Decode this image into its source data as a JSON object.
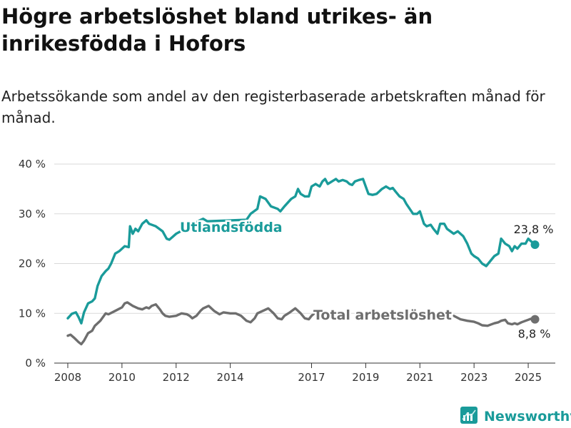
{
  "title": "Högre arbetslöshet bland utrikes- än inrikesfödda i Hofors",
  "subtitle": "Arbetssökande som andel av den registerbaserade arbetskraften månad för månad.",
  "brand": {
    "name": "Newsworthy",
    "icon": "newsworthy-logo-icon",
    "color": "#1a9b9a"
  },
  "chart_data": {
    "type": "line",
    "x_unit": "year",
    "xlim": [
      2007.5,
      2026.0
    ],
    "ylim": [
      0,
      40
    ],
    "y_ticks": [
      {
        "value": 0,
        "label": "0 %"
      },
      {
        "value": 10,
        "label": "10 %"
      },
      {
        "value": 20,
        "label": "20 %"
      },
      {
        "value": 30,
        "label": "30 %"
      },
      {
        "value": 40,
        "label": "40 %"
      }
    ],
    "x_ticks": [
      {
        "value": 2008,
        "label": "2008"
      },
      {
        "value": 2010,
        "label": "2010"
      },
      {
        "value": 2012,
        "label": "2012"
      },
      {
        "value": 2014,
        "label": "2014"
      },
      {
        "value": 2017,
        "label": "2017"
      },
      {
        "value": 2019,
        "label": "2019"
      },
      {
        "value": 2021,
        "label": "2021"
      },
      {
        "value": 2023,
        "label": "2023"
      },
      {
        "value": 2025,
        "label": "2025"
      }
    ],
    "grid": "horizontal",
    "series": [
      {
        "name": "Utlandsfödda",
        "color": "#1a9b9a",
        "last_label": "23,8 %",
        "points": [
          [
            2008.0,
            9.0
          ],
          [
            2008.15,
            9.9
          ],
          [
            2008.3,
            10.2
          ],
          [
            2008.4,
            9.2
          ],
          [
            2008.5,
            8.0
          ],
          [
            2008.6,
            10.2
          ],
          [
            2008.75,
            12.0
          ],
          [
            2008.9,
            12.4
          ],
          [
            2009.0,
            13.0
          ],
          [
            2009.1,
            15.5
          ],
          [
            2009.25,
            17.5
          ],
          [
            2009.4,
            18.5
          ],
          [
            2009.5,
            19.0
          ],
          [
            2009.6,
            20.0
          ],
          [
            2009.75,
            22.0
          ],
          [
            2009.9,
            22.5
          ],
          [
            2010.0,
            23.0
          ],
          [
            2010.1,
            23.5
          ],
          [
            2010.25,
            23.3
          ],
          [
            2010.3,
            27.5
          ],
          [
            2010.4,
            26.0
          ],
          [
            2010.5,
            27.0
          ],
          [
            2010.6,
            26.5
          ],
          [
            2010.75,
            28.0
          ],
          [
            2010.9,
            28.7
          ],
          [
            2011.0,
            28.0
          ],
          [
            2011.25,
            27.5
          ],
          [
            2011.5,
            26.5
          ],
          [
            2011.65,
            25.0
          ],
          [
            2011.75,
            24.8
          ],
          [
            2011.9,
            25.5
          ],
          [
            2012.0,
            26.0
          ],
          [
            2012.5,
            27.5
          ],
          [
            2012.8,
            28.5
          ],
          [
            2013.0,
            29.0
          ],
          [
            2013.15,
            28.5
          ],
          [
            2014.6,
            28.8
          ],
          [
            2014.75,
            30.0
          ],
          [
            2015.0,
            31.0
          ],
          [
            2015.1,
            33.5
          ],
          [
            2015.3,
            33.0
          ],
          [
            2015.5,
            31.5
          ],
          [
            2015.75,
            31.0
          ],
          [
            2015.85,
            30.5
          ],
          [
            2016.0,
            31.5
          ],
          [
            2016.25,
            33.0
          ],
          [
            2016.4,
            33.5
          ],
          [
            2016.5,
            35.0
          ],
          [
            2016.6,
            34.0
          ],
          [
            2016.75,
            33.5
          ],
          [
            2016.9,
            33.5
          ],
          [
            2017.0,
            35.5
          ],
          [
            2017.15,
            36.0
          ],
          [
            2017.3,
            35.5
          ],
          [
            2017.4,
            36.5
          ],
          [
            2017.5,
            37.0
          ],
          [
            2017.6,
            36.0
          ],
          [
            2017.75,
            36.5
          ],
          [
            2017.9,
            37.0
          ],
          [
            2018.0,
            36.5
          ],
          [
            2018.15,
            36.8
          ],
          [
            2018.3,
            36.5
          ],
          [
            2018.4,
            36.0
          ],
          [
            2018.5,
            35.8
          ],
          [
            2018.6,
            36.5
          ],
          [
            2018.75,
            36.8
          ],
          [
            2018.9,
            37.0
          ],
          [
            2019.0,
            35.5
          ],
          [
            2019.1,
            34.0
          ],
          [
            2019.25,
            33.8
          ],
          [
            2019.4,
            34.0
          ],
          [
            2019.5,
            34.5
          ],
          [
            2019.6,
            35.0
          ],
          [
            2019.75,
            35.5
          ],
          [
            2019.9,
            35.0
          ],
          [
            2020.0,
            35.2
          ],
          [
            2020.1,
            34.5
          ],
          [
            2020.25,
            33.5
          ],
          [
            2020.4,
            33.0
          ],
          [
            2020.5,
            32.0
          ],
          [
            2020.75,
            30.0
          ],
          [
            2020.9,
            30.0
          ],
          [
            2021.0,
            30.5
          ],
          [
            2021.15,
            28.0
          ],
          [
            2021.25,
            27.5
          ],
          [
            2021.4,
            27.8
          ],
          [
            2021.5,
            27.0
          ],
          [
            2021.65,
            26.0
          ],
          [
            2021.75,
            28.0
          ],
          [
            2021.9,
            28.0
          ],
          [
            2022.0,
            27.0
          ],
          [
            2022.25,
            26.0
          ],
          [
            2022.4,
            26.5
          ],
          [
            2022.5,
            26.0
          ],
          [
            2022.6,
            25.5
          ],
          [
            2022.75,
            24.0
          ],
          [
            2022.9,
            22.0
          ],
          [
            2023.0,
            21.5
          ],
          [
            2023.15,
            21.0
          ],
          [
            2023.3,
            20.0
          ],
          [
            2023.45,
            19.5
          ],
          [
            2023.6,
            20.5
          ],
          [
            2023.75,
            21.5
          ],
          [
            2023.9,
            22.0
          ],
          [
            2024.0,
            25.0
          ],
          [
            2024.15,
            24.0
          ],
          [
            2024.3,
            23.5
          ],
          [
            2024.4,
            22.5
          ],
          [
            2024.5,
            23.5
          ],
          [
            2024.6,
            23.0
          ],
          [
            2024.75,
            24.0
          ],
          [
            2024.9,
            24.0
          ],
          [
            2025.0,
            25.0
          ],
          [
            2025.1,
            24.5
          ],
          [
            2025.25,
            23.8
          ]
        ]
      },
      {
        "name": "Total arbetslöshet",
        "color": "#6e6e6e",
        "last_label": "8,8 %",
        "points": [
          [
            2008.0,
            5.5
          ],
          [
            2008.1,
            5.7
          ],
          [
            2008.25,
            5.0
          ],
          [
            2008.4,
            4.2
          ],
          [
            2008.5,
            3.8
          ],
          [
            2008.6,
            4.5
          ],
          [
            2008.75,
            6.0
          ],
          [
            2008.9,
            6.5
          ],
          [
            2009.0,
            7.5
          ],
          [
            2009.2,
            8.5
          ],
          [
            2009.4,
            10.0
          ],
          [
            2009.5,
            9.8
          ],
          [
            2009.75,
            10.5
          ],
          [
            2010.0,
            11.2
          ],
          [
            2010.1,
            12.0
          ],
          [
            2010.2,
            12.2
          ],
          [
            2010.4,
            11.5
          ],
          [
            2010.6,
            11.0
          ],
          [
            2010.75,
            10.8
          ],
          [
            2010.9,
            11.2
          ],
          [
            2011.0,
            11.0
          ],
          [
            2011.1,
            11.5
          ],
          [
            2011.25,
            11.8
          ],
          [
            2011.4,
            10.8
          ],
          [
            2011.5,
            10.0
          ],
          [
            2011.6,
            9.5
          ],
          [
            2011.75,
            9.3
          ],
          [
            2012.0,
            9.5
          ],
          [
            2012.2,
            10.0
          ],
          [
            2012.4,
            9.8
          ],
          [
            2012.5,
            9.5
          ],
          [
            2012.6,
            9.0
          ],
          [
            2012.75,
            9.5
          ],
          [
            2012.9,
            10.5
          ],
          [
            2013.0,
            11.0
          ],
          [
            2013.2,
            11.5
          ],
          [
            2013.4,
            10.5
          ],
          [
            2013.6,
            9.8
          ],
          [
            2013.75,
            10.2
          ],
          [
            2014.0,
            10.0
          ],
          [
            2014.2,
            10.0
          ],
          [
            2014.4,
            9.5
          ],
          [
            2014.5,
            9.0
          ],
          [
            2014.6,
            8.5
          ],
          [
            2014.75,
            8.2
          ],
          [
            2014.9,
            9.0
          ],
          [
            2015.0,
            10.0
          ],
          [
            2015.2,
            10.5
          ],
          [
            2015.4,
            11.0
          ],
          [
            2015.5,
            10.5
          ],
          [
            2015.6,
            10.0
          ],
          [
            2015.75,
            9.0
          ],
          [
            2015.9,
            8.8
          ],
          [
            2016.0,
            9.5
          ],
          [
            2016.2,
            10.2
          ],
          [
            2016.4,
            11.0
          ],
          [
            2016.5,
            10.5
          ],
          [
            2016.6,
            10.0
          ],
          [
            2016.75,
            9.0
          ],
          [
            2016.9,
            8.8
          ],
          [
            2017.0,
            9.5
          ],
          [
            2017.1,
            10.0
          ]
        ],
        "points_late": [
          [
            2022.25,
            9.5
          ],
          [
            2022.5,
            8.8
          ],
          [
            2022.75,
            8.5
          ],
          [
            2023.0,
            8.3
          ],
          [
            2023.15,
            8.0
          ],
          [
            2023.3,
            7.6
          ],
          [
            2023.5,
            7.5
          ],
          [
            2023.75,
            8.0
          ],
          [
            2023.9,
            8.2
          ],
          [
            2024.0,
            8.5
          ],
          [
            2024.15,
            8.7
          ],
          [
            2024.25,
            8.0
          ],
          [
            2024.4,
            7.8
          ],
          [
            2024.5,
            8.0
          ],
          [
            2024.6,
            7.8
          ],
          [
            2024.75,
            8.2
          ],
          [
            2024.9,
            8.5
          ],
          [
            2025.0,
            8.7
          ],
          [
            2025.1,
            8.9
          ],
          [
            2025.25,
            8.8
          ]
        ]
      }
    ]
  }
}
